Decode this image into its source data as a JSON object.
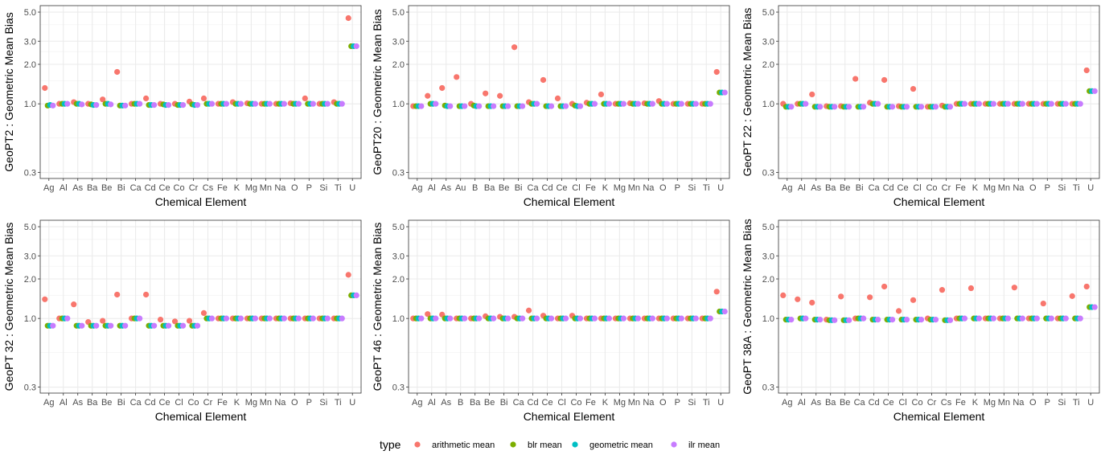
{
  "chart_data": [
    {
      "type": "scatter",
      "ylabel": "GeoPT2 : Geometric Mean Bias",
      "xlabel": "Chemical Element",
      "y_scale": "log",
      "yticks": [
        "0.3",
        "1.0",
        "2.0",
        "3.0",
        "5.0"
      ],
      "categories": [
        "Ag",
        "Al",
        "As",
        "Ba",
        "Be",
        "Bi",
        "Ca",
        "Cd",
        "Ce",
        "Co",
        "Cr",
        "Cs",
        "Fe",
        "K",
        "Mg",
        "Mn",
        "Na",
        "O",
        "P",
        "Si",
        "Ti",
        "U"
      ],
      "series": [
        {
          "name": "arithmetic mean",
          "values": [
            1.32,
            1.0,
            1.03,
            1.0,
            1.08,
            1.75,
            1.0,
            1.1,
            1.0,
            1.0,
            1.04,
            1.1,
            1.0,
            1.03,
            1.01,
            1.0,
            1.0,
            1.01,
            1.1,
            1.0,
            1.03,
            4.5
          ]
        },
        {
          "name": "blr mean",
          "values": [
            0.97,
            1.0,
            1.0,
            0.99,
            1.0,
            0.97,
            1.0,
            0.98,
            0.99,
            0.98,
            0.99,
            1.0,
            1.0,
            1.0,
            1.0,
            1.0,
            1.0,
            1.0,
            1.0,
            1.0,
            1.0,
            2.75
          ]
        },
        {
          "name": "geometric mean",
          "values": [
            0.98,
            1.0,
            1.0,
            0.98,
            1.0,
            0.97,
            1.0,
            0.98,
            0.98,
            0.98,
            0.98,
            1.0,
            1.0,
            1.0,
            1.0,
            1.0,
            1.0,
            1.0,
            1.0,
            1.0,
            1.0,
            2.75
          ]
        },
        {
          "name": "ilr mean",
          "values": [
            0.97,
            1.0,
            0.99,
            0.98,
            0.99,
            0.97,
            1.0,
            0.98,
            0.98,
            0.98,
            0.98,
            1.0,
            1.0,
            1.0,
            1.0,
            1.0,
            1.0,
            1.0,
            1.0,
            1.0,
            1.0,
            2.75
          ]
        }
      ]
    },
    {
      "type": "scatter",
      "ylabel": "GeoPT20 : Geometric Mean Bias",
      "xlabel": "Chemical Element",
      "y_scale": "log",
      "yticks": [
        "0.3",
        "1.0",
        "2.0",
        "3.0",
        "5.0"
      ],
      "categories": [
        "Ag",
        "Al",
        "As",
        "Au",
        "B",
        "Ba",
        "Be",
        "Bi",
        "Ca",
        "Cd",
        "Ce",
        "Cl",
        "Fe",
        "K",
        "Mg",
        "Mn",
        "Na",
        "O",
        "P",
        "Si",
        "Ti",
        "U"
      ],
      "series": [
        {
          "name": "arithmetic mean",
          "values": [
            0.96,
            1.15,
            1.32,
            1.6,
            1.0,
            1.2,
            1.15,
            2.7,
            1.03,
            1.52,
            1.1,
            1.0,
            1.02,
            1.18,
            1.0,
            1.01,
            1.01,
            1.05,
            1.0,
            1.0,
            1.0,
            1.75
          ]
        },
        {
          "name": "blr mean",
          "values": [
            0.96,
            1.0,
            0.97,
            0.96,
            0.97,
            0.96,
            0.96,
            0.96,
            1.0,
            0.96,
            0.96,
            0.97,
            1.0,
            1.0,
            1.0,
            1.0,
            1.0,
            1.0,
            1.0,
            1.0,
            1.0,
            1.22
          ]
        },
        {
          "name": "geometric mean",
          "values": [
            0.96,
            1.0,
            0.96,
            0.96,
            0.96,
            0.96,
            0.96,
            0.96,
            1.0,
            0.96,
            0.96,
            0.96,
            1.0,
            1.0,
            1.0,
            1.0,
            1.0,
            1.0,
            1.0,
            1.0,
            1.0,
            1.22
          ]
        },
        {
          "name": "ilr mean",
          "values": [
            0.96,
            1.0,
            0.96,
            0.96,
            0.96,
            0.96,
            0.96,
            0.96,
            1.0,
            0.96,
            0.96,
            0.96,
            1.0,
            1.0,
            1.0,
            1.0,
            1.0,
            1.0,
            1.0,
            1.0,
            1.0,
            1.22
          ]
        }
      ]
    },
    {
      "type": "scatter",
      "ylabel": "GeoPT 22 : Geometric Mean Bias",
      "xlabel": "Chemical Element",
      "y_scale": "log",
      "yticks": [
        "0.3",
        "1.0",
        "2.0",
        "3.0",
        "5.0"
      ],
      "categories": [
        "Ag",
        "Al",
        "As",
        "Ba",
        "Be",
        "Bi",
        "Ca",
        "Cd",
        "Ce",
        "Cl",
        "Co",
        "Cr",
        "Fe",
        "K",
        "Mg",
        "Mn",
        "Na",
        "O",
        "P",
        "Si",
        "Ti",
        "U"
      ],
      "series": [
        {
          "name": "arithmetic mean",
          "values": [
            1.0,
            1.0,
            1.18,
            0.96,
            0.96,
            1.55,
            1.02,
            1.52,
            0.96,
            1.3,
            0.95,
            0.97,
            1.0,
            1.0,
            1.0,
            1.0,
            1.0,
            1.0,
            1.0,
            1.0,
            1.0,
            1.8
          ]
        },
        {
          "name": "blr mean",
          "values": [
            0.95,
            1.0,
            0.95,
            0.95,
            0.95,
            0.95,
            1.0,
            0.95,
            0.95,
            0.95,
            0.95,
            0.95,
            1.0,
            1.0,
            1.0,
            1.0,
            1.0,
            1.0,
            1.0,
            1.0,
            1.0,
            1.25
          ]
        },
        {
          "name": "geometric mean",
          "values": [
            0.95,
            1.0,
            0.95,
            0.95,
            0.95,
            0.95,
            1.0,
            0.95,
            0.95,
            0.95,
            0.95,
            0.95,
            1.0,
            1.0,
            1.0,
            1.0,
            1.0,
            1.0,
            1.0,
            1.0,
            1.0,
            1.25
          ]
        },
        {
          "name": "ilr mean",
          "values": [
            0.95,
            1.0,
            0.95,
            0.95,
            0.95,
            0.95,
            1.0,
            0.95,
            0.95,
            0.95,
            0.95,
            0.95,
            1.0,
            1.0,
            1.0,
            1.0,
            1.0,
            1.0,
            1.0,
            1.0,
            1.0,
            1.25
          ]
        }
      ]
    },
    {
      "type": "scatter",
      "ylabel": "GeoPT 32 : Geometric Mean Bias",
      "xlabel": "Chemical Element",
      "y_scale": "log",
      "yticks": [
        "0.3",
        "1.0",
        "2.0",
        "3.0",
        "5.0"
      ],
      "categories": [
        "Ag",
        "Al",
        "As",
        "Ba",
        "Be",
        "Bi",
        "Ca",
        "Cd",
        "Ce",
        "Cl",
        "Co",
        "Cr",
        "Fe",
        "K",
        "Mg",
        "Mn",
        "Na",
        "O",
        "P",
        "Si",
        "Ti",
        "U"
      ],
      "series": [
        {
          "name": "arithmetic mean",
          "values": [
            1.4,
            1.0,
            1.28,
            0.94,
            0.96,
            1.52,
            1.0,
            1.52,
            0.98,
            0.95,
            0.96,
            1.1,
            1.0,
            1.0,
            1.0,
            1.0,
            1.0,
            1.0,
            1.0,
            1.0,
            1.0,
            2.15
          ]
        },
        {
          "name": "blr mean",
          "values": [
            0.88,
            1.0,
            0.88,
            0.88,
            0.88,
            0.88,
            1.0,
            0.88,
            0.88,
            0.88,
            0.88,
            1.0,
            1.0,
            1.0,
            1.0,
            1.0,
            1.0,
            1.0,
            1.0,
            1.0,
            1.0,
            1.5
          ]
        },
        {
          "name": "geometric mean",
          "values": [
            0.88,
            1.0,
            0.88,
            0.88,
            0.88,
            0.88,
            1.0,
            0.88,
            0.88,
            0.88,
            0.88,
            1.0,
            1.0,
            1.0,
            1.0,
            1.0,
            1.0,
            1.0,
            1.0,
            1.0,
            1.0,
            1.5
          ]
        },
        {
          "name": "ilr mean",
          "values": [
            0.88,
            1.0,
            0.88,
            0.88,
            0.88,
            0.88,
            1.0,
            0.88,
            0.88,
            0.88,
            0.88,
            1.0,
            1.0,
            1.0,
            1.0,
            1.0,
            1.0,
            1.0,
            1.0,
            1.0,
            1.0,
            1.5
          ]
        }
      ]
    },
    {
      "type": "scatter",
      "ylabel": "GeoPT 46 : Geometric Mean Bias",
      "xlabel": "Chemical Element",
      "y_scale": "log",
      "yticks": [
        "0.3",
        "1.0",
        "2.0",
        "3.0",
        "5.0"
      ],
      "categories": [
        "Ag",
        "Al",
        "As",
        "B",
        "Ba",
        "Be",
        "Bi",
        "Ca",
        "Cd",
        "Ce",
        "Cl",
        "Co",
        "Fe",
        "K",
        "Mg",
        "Mn",
        "Na",
        "O",
        "P",
        "Si",
        "Ti",
        "U"
      ],
      "series": [
        {
          "name": "arithmetic mean",
          "values": [
            1.0,
            1.08,
            1.07,
            1.0,
            1.0,
            1.04,
            1.03,
            1.03,
            1.15,
            1.05,
            1.0,
            1.05,
            1.0,
            1.0,
            1.0,
            1.0,
            1.0,
            1.0,
            1.0,
            1.0,
            1.0,
            1.6
          ]
        },
        {
          "name": "blr mean",
          "values": [
            1.0,
            1.0,
            1.0,
            1.0,
            1.0,
            1.0,
            1.0,
            1.0,
            1.0,
            1.0,
            1.0,
            1.0,
            1.0,
            1.0,
            1.0,
            1.0,
            1.0,
            1.0,
            1.0,
            1.0,
            1.0,
            1.13
          ]
        },
        {
          "name": "geometric mean",
          "values": [
            1.0,
            1.0,
            1.0,
            1.0,
            1.0,
            1.0,
            1.0,
            1.0,
            1.0,
            1.0,
            1.0,
            1.0,
            1.0,
            1.0,
            1.0,
            1.0,
            1.0,
            1.0,
            1.0,
            1.0,
            1.0,
            1.13
          ]
        },
        {
          "name": "ilr mean",
          "values": [
            1.0,
            1.0,
            1.0,
            1.0,
            1.0,
            1.0,
            1.0,
            1.0,
            1.0,
            1.0,
            1.0,
            1.0,
            1.0,
            1.0,
            1.0,
            1.0,
            1.0,
            1.0,
            1.0,
            1.0,
            1.0,
            1.13
          ]
        }
      ]
    },
    {
      "type": "scatter",
      "ylabel": "GeoPT 38A : Geometric Mean Bias",
      "xlabel": "Chemical Element",
      "y_scale": "log",
      "yticks": [
        "0.3",
        "1.0",
        "2.0",
        "3.0",
        "5.0"
      ],
      "categories": [
        "Ag",
        "Al",
        "As",
        "Ba",
        "Be",
        "Ca",
        "Cd",
        "Ce",
        "Cl",
        "Co",
        "Cr",
        "Cs",
        "Fe",
        "K",
        "Mg",
        "Mn",
        "Na",
        "O",
        "P",
        "Si",
        "Ti",
        "U"
      ],
      "series": [
        {
          "name": "arithmetic mean",
          "values": [
            1.5,
            1.4,
            1.32,
            0.98,
            1.47,
            1.0,
            1.45,
            1.75,
            1.14,
            1.38,
            1.0,
            1.65,
            1.0,
            1.7,
            1.0,
            1.0,
            1.72,
            1.0,
            1.3,
            1.0,
            1.48,
            1.75
          ]
        },
        {
          "name": "blr mean",
          "values": [
            0.98,
            1.0,
            0.98,
            0.97,
            0.97,
            1.0,
            0.98,
            0.98,
            0.98,
            0.98,
            0.98,
            0.97,
            1.0,
            1.0,
            1.0,
            1.0,
            1.0,
            1.0,
            1.0,
            1.0,
            1.0,
            1.22
          ]
        },
        {
          "name": "geometric mean",
          "values": [
            0.98,
            1.0,
            0.98,
            0.97,
            0.97,
            1.0,
            0.98,
            0.98,
            0.98,
            0.98,
            0.98,
            0.97,
            1.0,
            1.0,
            1.0,
            1.0,
            1.0,
            1.0,
            1.0,
            1.0,
            1.0,
            1.22
          ]
        },
        {
          "name": "ilr mean",
          "values": [
            0.98,
            1.0,
            0.98,
            0.97,
            0.97,
            1.0,
            0.98,
            0.98,
            0.98,
            0.98,
            0.98,
            0.97,
            1.0,
            1.0,
            1.0,
            1.0,
            1.0,
            1.0,
            1.0,
            1.0,
            1.0,
            1.22
          ]
        }
      ]
    }
  ],
  "legend": {
    "title": "type",
    "placement": "bottom",
    "items": [
      {
        "label": "arithmetic mean",
        "color": "#F8766D"
      },
      {
        "label": "blr mean",
        "color": "#7CAE00"
      },
      {
        "label": "geometric mean",
        "color": "#00BFC4"
      },
      {
        "label": "ilr mean",
        "color": "#C77CFF"
      }
    ]
  }
}
